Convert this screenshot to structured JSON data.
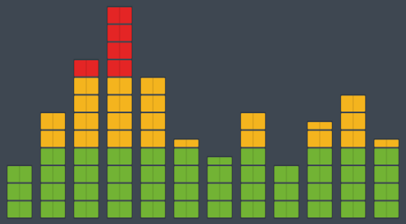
{
  "chart_data": {
    "type": "bar",
    "values": [
      3,
      6,
      9,
      12,
      8,
      4.5,
      3.5,
      6,
      3,
      5.5,
      7,
      4.5
    ],
    "ylim": [
      0,
      12
    ],
    "colors": [
      "#72b334",
      "#f4b41e",
      "#e42525"
    ]
  }
}
